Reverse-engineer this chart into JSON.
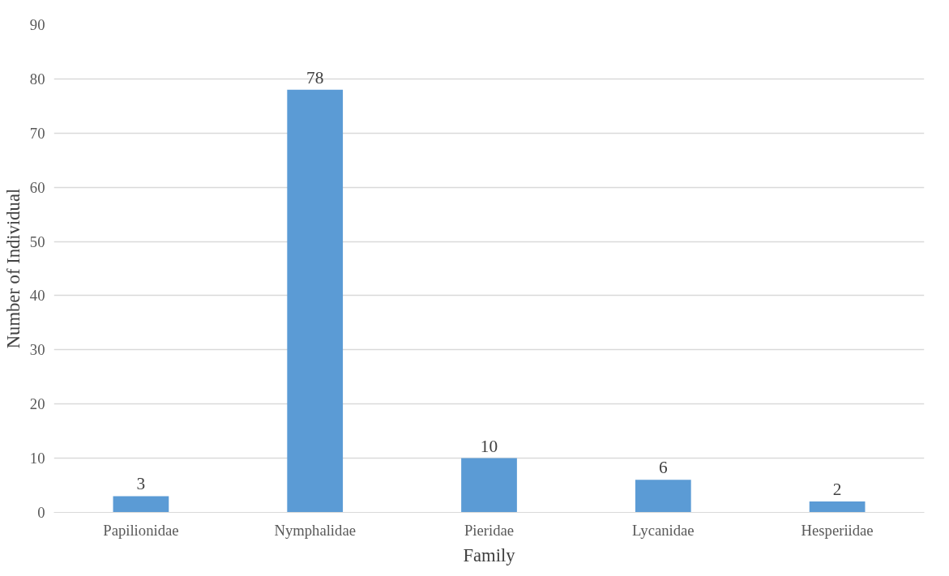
{
  "chart_data": {
    "type": "bar",
    "xlabel": "Family",
    "ylabel": "Number of Individual",
    "categories": [
      "Papilionidae",
      "Nymphalidae",
      "Pieridae",
      "Lycanidae",
      "Hesperiidae"
    ],
    "values": [
      3,
      78,
      10,
      6,
      2
    ],
    "color": "#5b9bd5",
    "data_labels": true,
    "ylim": [
      0,
      90
    ],
    "yticks": [
      0,
      10,
      20,
      30,
      40,
      50,
      60,
      70,
      80,
      90
    ],
    "grid": "y"
  }
}
